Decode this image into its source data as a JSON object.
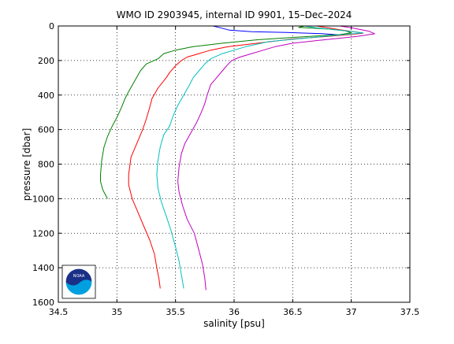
{
  "chart_data": {
    "type": "line",
    "title": "WMO ID 2903945, internal ID 9901, 15–Dec–2024",
    "xlabel": "salinity [psu]",
    "ylabel": "pressure [dbar]",
    "xlim": [
      34.5,
      37.5
    ],
    "ylim": [
      0,
      1600
    ],
    "y_reversed": true,
    "grid": true,
    "grid_style": "dotted",
    "xticks": [
      "34.5",
      "35",
      "35.5",
      "36",
      "36.5",
      "37",
      "37.5"
    ],
    "yticks": [
      "0",
      "200",
      "400",
      "600",
      "800",
      "1000",
      "1200",
      "1400",
      "1600"
    ],
    "logo": "NOAA",
    "series": [
      {
        "color": "#0000ff",
        "points": [
          [
            35.82,
            0
          ],
          [
            35.88,
            10
          ],
          [
            35.96,
            24
          ],
          [
            36.15,
            33
          ],
          [
            36.45,
            38
          ],
          [
            36.75,
            44
          ],
          [
            36.9,
            52
          ]
        ]
      },
      {
        "color": "#007f00",
        "points": [
          [
            36.6,
            0
          ],
          [
            36.55,
            8
          ],
          [
            36.8,
            18
          ],
          [
            36.95,
            28
          ],
          [
            37.0,
            40
          ],
          [
            36.9,
            50
          ],
          [
            36.6,
            62
          ],
          [
            36.2,
            80
          ],
          [
            35.9,
            100
          ],
          [
            35.65,
            120
          ],
          [
            35.5,
            140
          ],
          [
            35.4,
            160
          ],
          [
            35.35,
            190
          ],
          [
            35.25,
            220
          ],
          [
            35.2,
            260
          ],
          [
            35.15,
            320
          ],
          [
            35.1,
            380
          ],
          [
            35.07,
            420
          ],
          [
            35.04,
            470
          ],
          [
            35.0,
            530
          ],
          [
            34.96,
            580
          ],
          [
            34.92,
            640
          ],
          [
            34.89,
            700
          ],
          [
            34.87,
            780
          ],
          [
            34.86,
            860
          ],
          [
            34.86,
            900
          ],
          [
            34.88,
            950
          ],
          [
            34.92,
            1000
          ]
        ]
      },
      {
        "color": "#ff0000",
        "points": [
          [
            36.7,
            0
          ],
          [
            36.8,
            10
          ],
          [
            36.9,
            22
          ],
          [
            37.05,
            36
          ],
          [
            37.1,
            42
          ],
          [
            36.95,
            52
          ],
          [
            36.8,
            60
          ],
          [
            36.5,
            75
          ],
          [
            36.2,
            100
          ],
          [
            35.95,
            120
          ],
          [
            35.8,
            140
          ],
          [
            35.7,
            160
          ],
          [
            35.6,
            180
          ],
          [
            35.55,
            200
          ],
          [
            35.5,
            230
          ],
          [
            35.45,
            270
          ],
          [
            35.42,
            300
          ],
          [
            35.35,
            360
          ],
          [
            35.3,
            420
          ],
          [
            35.28,
            470
          ],
          [
            35.25,
            540
          ],
          [
            35.22,
            600
          ],
          [
            35.17,
            680
          ],
          [
            35.12,
            760
          ],
          [
            35.1,
            860
          ],
          [
            35.1,
            920
          ],
          [
            35.13,
            1000
          ],
          [
            35.18,
            1080
          ],
          [
            35.23,
            1160
          ],
          [
            35.28,
            1240
          ],
          [
            35.32,
            1320
          ],
          [
            35.34,
            1400
          ],
          [
            35.36,
            1470
          ],
          [
            35.37,
            1520
          ]
        ]
      },
      {
        "color": "#00bfbf",
        "points": [
          [
            36.6,
            0
          ],
          [
            36.7,
            10
          ],
          [
            36.95,
            28
          ],
          [
            37.1,
            40
          ],
          [
            36.85,
            55
          ],
          [
            36.65,
            68
          ],
          [
            36.3,
            90
          ],
          [
            36.1,
            120
          ],
          [
            36.0,
            140
          ],
          [
            35.9,
            160
          ],
          [
            35.8,
            190
          ],
          [
            35.75,
            220
          ],
          [
            35.7,
            260
          ],
          [
            35.65,
            300
          ],
          [
            35.62,
            340
          ],
          [
            35.57,
            400
          ],
          [
            35.52,
            460
          ],
          [
            35.48,
            520
          ],
          [
            35.45,
            580
          ],
          [
            35.4,
            630
          ],
          [
            35.37,
            700
          ],
          [
            35.35,
            780
          ],
          [
            35.34,
            860
          ],
          [
            35.35,
            940
          ],
          [
            35.38,
            1020
          ],
          [
            35.42,
            1100
          ],
          [
            35.46,
            1180
          ],
          [
            35.5,
            1280
          ],
          [
            35.53,
            1360
          ],
          [
            35.55,
            1440
          ],
          [
            35.57,
            1520
          ]
        ]
      },
      {
        "color": "#bf00bf",
        "points": [
          [
            36.9,
            0
          ],
          [
            37.0,
            10
          ],
          [
            37.15,
            30
          ],
          [
            37.2,
            45
          ],
          [
            37.05,
            60
          ],
          [
            36.7,
            85
          ],
          [
            36.5,
            100
          ],
          [
            36.35,
            120
          ],
          [
            36.25,
            140
          ],
          [
            36.15,
            160
          ],
          [
            36.05,
            180
          ],
          [
            35.98,
            200
          ],
          [
            35.95,
            220
          ],
          [
            35.9,
            260
          ],
          [
            35.85,
            300
          ],
          [
            35.8,
            340
          ],
          [
            35.77,
            400
          ],
          [
            35.75,
            450
          ],
          [
            35.72,
            500
          ],
          [
            35.68,
            560
          ],
          [
            35.63,
            620
          ],
          [
            35.58,
            680
          ],
          [
            35.55,
            740
          ],
          [
            35.53,
            820
          ],
          [
            35.52,
            900
          ],
          [
            35.53,
            960
          ],
          [
            35.56,
            1040
          ],
          [
            35.6,
            1120
          ],
          [
            35.66,
            1200
          ],
          [
            35.7,
            1300
          ],
          [
            35.73,
            1380
          ],
          [
            35.75,
            1460
          ],
          [
            35.76,
            1530
          ]
        ]
      }
    ]
  }
}
